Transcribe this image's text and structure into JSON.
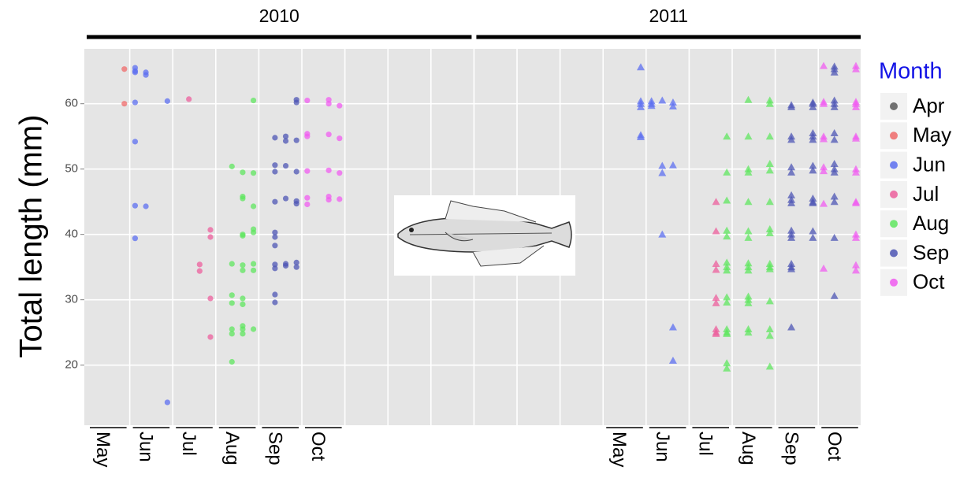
{
  "chart_data": {
    "type": "scatter",
    "ylabel": "Total length (mm)",
    "legend_title": "Month",
    "years": [
      "2010",
      "2011"
    ],
    "markers": [
      "circle",
      "triangle"
    ],
    "categories": [
      "May",
      "Jun",
      "Jul",
      "Aug",
      "Sep",
      "Oct",
      null,
      null,
      null,
      null,
      null,
      null,
      "May",
      "Jun",
      "Jul",
      "Aug",
      "Sep",
      "Oct"
    ],
    "ylim": [
      10.8,
      68.4
    ],
    "yticks": [
      20,
      30,
      40,
      50,
      60
    ],
    "grid": true,
    "legend_position": "right",
    "series": [
      {
        "name": "Apr",
        "color": "#5a5a5a",
        "values": [
          null,
          null,
          null,
          null,
          null,
          null,
          null,
          null,
          null,
          null,
          null,
          null,
          null,
          null,
          null,
          null,
          null,
          null
        ]
      },
      {
        "name": "May",
        "color": "#ef6a6a",
        "values": [
          [
            null,
            null,
            null,
            [
              65.3,
              60.0
            ]
          ],
          null,
          null,
          null,
          null,
          null,
          null,
          null,
          null,
          null,
          null,
          null,
          null,
          null,
          null,
          null,
          null,
          null
        ]
      },
      {
        "name": "Jun",
        "color": "#5c6ff0",
        "values": [
          null,
          [
            [
              65.5,
              65.0,
              64.8,
              60.2,
              54.2,
              44.4,
              39.4
            ],
            [
              64.8,
              64.4,
              44.3
            ],
            null,
            [
              60.4,
              14.3
            ]
          ],
          null,
          null,
          null,
          null,
          null,
          null,
          null,
          null,
          null,
          null,
          [
            null,
            null,
            null,
            [
              65.6,
              60.4,
              60.0,
              59.5,
              55.2,
              54.9
            ]
          ],
          [
            [
              60.4,
              60.0,
              59.7
            ],
            [
              60.5,
              50.5,
              49.4,
              40.0
            ],
            [
              60.2,
              59.6,
              50.6,
              25.8,
              20.7
            ],
            null
          ],
          null,
          null,
          null,
          null
        ]
      },
      {
        "name": "Jul",
        "color": "#ec5f9c",
        "values": [
          null,
          null,
          [
            null,
            [
              60.7
            ],
            [
              35.4,
              34.4
            ],
            [
              40.7,
              39.6,
              30.2,
              24.3
            ]
          ],
          null,
          null,
          null,
          null,
          null,
          null,
          null,
          null,
          null,
          null,
          null,
          [
            null,
            null,
            [
              45.0,
              40.5,
              35.5,
              34.6,
              30.3,
              29.5,
              25.5,
              25.0,
              24.8
            ],
            null
          ],
          null,
          null,
          null
        ]
      },
      {
        "name": "Aug",
        "color": "#5fe65f",
        "values": [
          null,
          null,
          null,
          [
            null,
            [
              50.4,
              35.5,
              30.7,
              29.5,
              25.5,
              24.8,
              20.5
            ],
            [
              49.5,
              45.8,
              45.5,
              40.0,
              39.8,
              35.3,
              34.5,
              30.2,
              29.3,
              26.0,
              25.5,
              24.8
            ],
            [
              60.5,
              49.4,
              44.3,
              40.8,
              40.3,
              35.5,
              34.5,
              25.5
            ]
          ],
          null,
          null,
          null,
          null,
          null,
          null,
          null,
          null,
          null,
          null,
          [
            null,
            null,
            null,
            [
              55.0,
              49.5,
              45.2,
              40.6,
              39.7,
              35.7,
              35.0,
              34.5,
              30.4,
              29.6,
              25.5,
              25.0,
              24.8,
              20.3,
              19.5
            ]
          ],
          [
            null,
            [
              60.6,
              55.0,
              50.0,
              49.5,
              45.0,
              40.5,
              39.5,
              35.6,
              35.0,
              34.5,
              30.5,
              30.0,
              29.5,
              25.5,
              25.0
            ],
            null,
            [
              60.5,
              60.0,
              55.0,
              50.8,
              49.8,
              45.0,
              40.8,
              40.2,
              35.5,
              35.0,
              34.7,
              29.8,
              25.5,
              24.5,
              19.8
            ]
          ],
          null,
          null
        ]
      },
      {
        "name": "Sep",
        "color": "#4e56b4",
        "values": [
          null,
          null,
          null,
          null,
          [
            null,
            [
              54.8,
              50.6,
              49.6,
              45.0,
              40.3,
              39.6,
              38.3,
              35.4,
              34.8,
              30.8,
              29.6
            ],
            [
              55.0,
              54.3,
              50.5,
              45.5,
              35.5,
              35.2
            ],
            [
              60.6,
              60.2,
              54.4,
              49.6,
              45.1,
              44.7,
              35.7,
              35.0
            ]
          ],
          null,
          null,
          null,
          null,
          null,
          null,
          null,
          null,
          null,
          null,
          null,
          [
            null,
            [
              59.8,
              59.5,
              55.0,
              54.5,
              50.3,
              49.5,
              46.0,
              45.3,
              44.8,
              40.6,
              40.0,
              39.5,
              35.5,
              35.0,
              34.7,
              25.8
            ],
            null,
            [
              60.2,
              60.0,
              59.5,
              55.5,
              55.0,
              54.5,
              50.5,
              49.8,
              45.5,
              45.0,
              44.8,
              40.5,
              39.5
            ]
          ],
          [
            null,
            [
              65.7,
              65.3,
              64.8,
              60.5,
              60.0,
              59.5,
              55.5,
              54.5,
              50.8,
              50.0,
              49.5,
              45.8,
              45.0,
              39.5,
              30.6
            ],
            null,
            null
          ]
        ]
      },
      {
        "name": "Oct",
        "color": "#f05cf0",
        "values": [
          null,
          null,
          null,
          null,
          null,
          [
            [
              60.5,
              55.4,
              55.0,
              49.7,
              45.6,
              44.6
            ],
            null,
            [
              60.6,
              60.0,
              55.3,
              49.8,
              45.8,
              45.3
            ],
            [
              59.7,
              54.7,
              49.4,
              45.4
            ]
          ],
          null,
          null,
          null,
          null,
          null,
          null,
          null,
          null,
          null,
          null,
          null,
          [
            [
              65.8,
              60.3,
              60.0,
              55.0,
              54.6,
              50.3,
              49.7,
              44.7,
              34.8
            ],
            null,
            null,
            [
              65.8,
              65.3,
              60.3,
              60.0,
              59.5,
              55.0,
              54.7,
              50.0,
              49.5,
              45.0,
              44.8,
              40.0,
              39.5,
              35.3,
              34.5
            ]
          ]
        ]
      }
    ]
  }
}
